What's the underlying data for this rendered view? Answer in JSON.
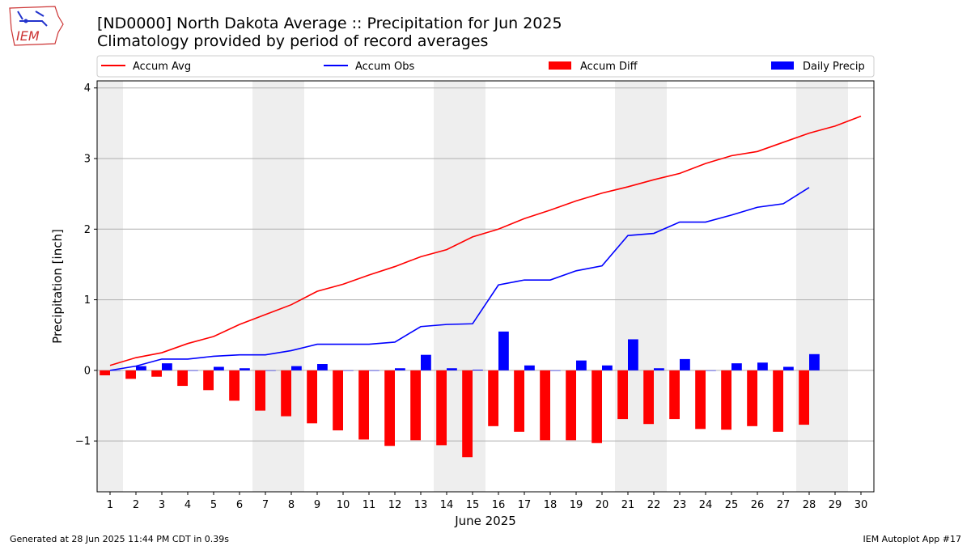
{
  "header": {
    "title_line1": "[ND0000] North Dakota Average :: Precipitation for Jun 2025",
    "title_line2": "Climatology provided by period of record averages"
  },
  "logo": {
    "text": "IEM"
  },
  "footer": {
    "generated": "Generated at 28 Jun 2025 11:44 PM CDT in 0.39s",
    "app": "IEM Autoplot App #17"
  },
  "colors": {
    "avg": "#ff0000",
    "obs": "#0000ff",
    "diff": "#ff0000",
    "daily": "#0000ff",
    "shade": "#eeeeee",
    "grid": "#b0b0b0"
  },
  "chart_data": {
    "type": "bar",
    "xlabel": "June 2025",
    "ylabel": "Precipitation [inch]",
    "ylim": [
      -1.72,
      4.1
    ],
    "xlim": [
      0.5,
      30.5
    ],
    "yticks": [
      -1,
      0,
      1,
      2,
      3,
      4
    ],
    "ytick_labels": [
      "−1",
      "0",
      "1",
      "2",
      "3",
      "4"
    ],
    "days": [
      1,
      2,
      3,
      4,
      5,
      6,
      7,
      8,
      9,
      10,
      11,
      12,
      13,
      14,
      15,
      16,
      17,
      18,
      19,
      20,
      21,
      22,
      23,
      24,
      25,
      26,
      27,
      28,
      29,
      30
    ],
    "day_labels": [
      "1",
      "2",
      "3",
      "4",
      "5",
      "6",
      "7",
      "8",
      "9",
      "10",
      "11",
      "12",
      "13",
      "14",
      "15",
      "16",
      "17",
      "18",
      "19",
      "20",
      "21",
      "22",
      "23",
      "24",
      "25",
      "26",
      "27",
      "28",
      "29",
      "30"
    ],
    "weekend_shading": [
      [
        0.5,
        1.5
      ],
      [
        6.5,
        8.5
      ],
      [
        13.5,
        15.5
      ],
      [
        20.5,
        22.5
      ],
      [
        27.5,
        29.5
      ]
    ],
    "grid": true,
    "legend": {
      "placement": "top",
      "items": [
        {
          "label": "Accum Avg",
          "kind": "line",
          "color": "#ff0000"
        },
        {
          "label": "Accum Obs",
          "kind": "line",
          "color": "#0000ff"
        },
        {
          "label": "Accum Diff",
          "kind": "bar",
          "color": "#ff0000"
        },
        {
          "label": "Daily Precip",
          "kind": "bar",
          "color": "#0000ff"
        }
      ]
    },
    "series": [
      {
        "name": "Accum Avg",
        "kind": "line",
        "values": [
          0.07,
          0.18,
          0.25,
          0.38,
          0.48,
          0.65,
          0.79,
          0.93,
          1.12,
          1.22,
          1.35,
          1.47,
          1.61,
          1.71,
          1.89,
          2.0,
          2.15,
          2.27,
          2.4,
          2.51,
          2.6,
          2.7,
          2.79,
          2.93,
          3.04,
          3.1,
          3.23,
          3.36,
          3.46,
          3.6
        ]
      },
      {
        "name": "Accum Obs",
        "kind": "line",
        "values": [
          0.0,
          0.06,
          0.16,
          0.16,
          0.2,
          0.22,
          0.22,
          0.28,
          0.37,
          0.37,
          0.37,
          0.4,
          0.62,
          0.65,
          0.66,
          1.21,
          1.28,
          1.28,
          1.41,
          1.48,
          1.91,
          1.94,
          2.1,
          2.1,
          2.2,
          2.31,
          2.36,
          2.59
        ]
      },
      {
        "name": "Accum Diff",
        "kind": "bar",
        "values": [
          -0.07,
          -0.12,
          -0.09,
          -0.22,
          -0.28,
          -0.43,
          -0.57,
          -0.65,
          -0.75,
          -0.85,
          -0.98,
          -1.07,
          -0.99,
          -1.06,
          -1.23,
          -0.79,
          -0.87,
          -0.99,
          -0.99,
          -1.03,
          -0.69,
          -0.76,
          -0.69,
          -0.83,
          -0.84,
          -0.79,
          -0.87,
          -0.77
        ]
      },
      {
        "name": "Daily Precip",
        "kind": "bar",
        "values": [
          0.0,
          0.06,
          0.1,
          0.0,
          0.05,
          0.03,
          0.0,
          0.06,
          0.09,
          0.0,
          0.0,
          0.03,
          0.22,
          0.03,
          0.01,
          0.55,
          0.07,
          0.0,
          0.14,
          0.07,
          0.44,
          0.03,
          0.16,
          0.0,
          0.1,
          0.11,
          0.05,
          0.23
        ]
      }
    ]
  }
}
